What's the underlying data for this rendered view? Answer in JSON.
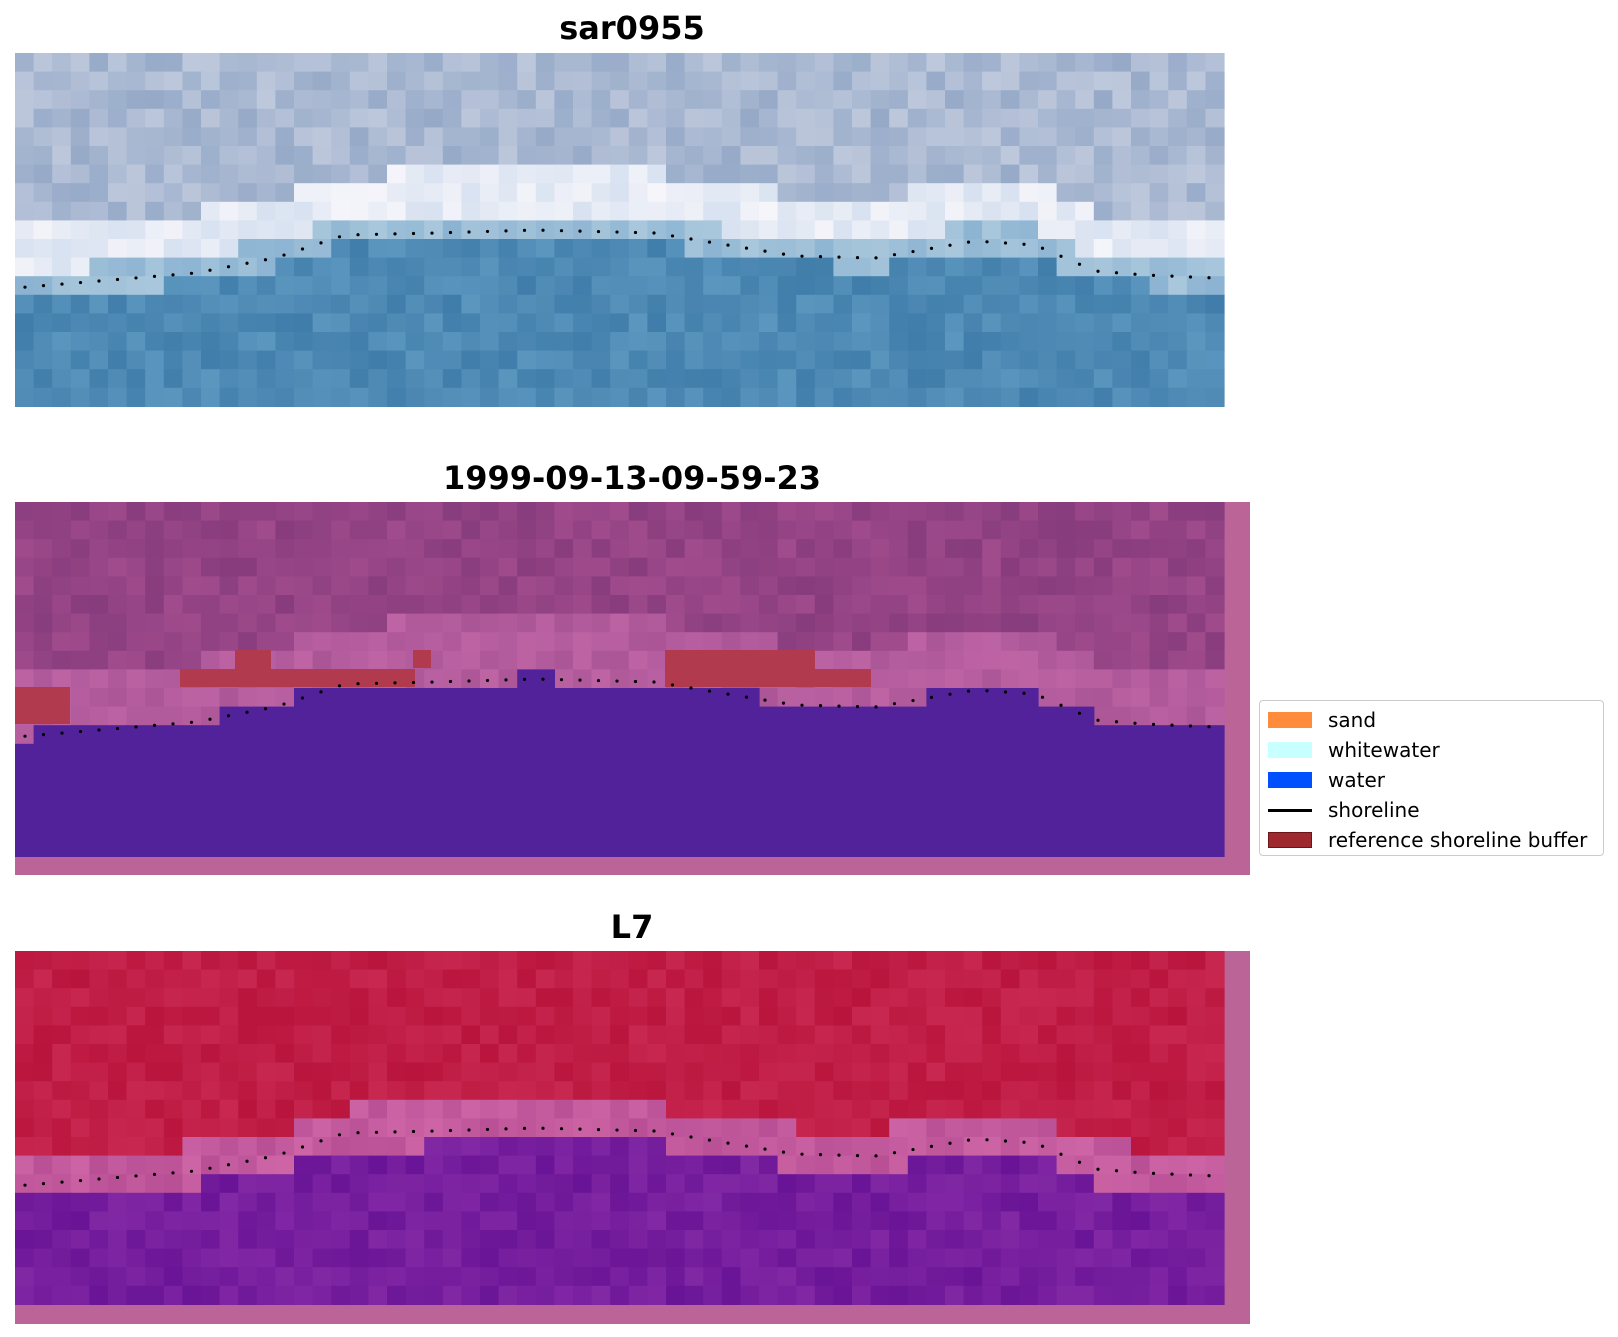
{
  "panels": [
    {
      "title": "sar0955",
      "kind": "rgb"
    },
    {
      "title": "1999-09-13-09-59-23",
      "kind": "classified"
    },
    {
      "title": "L7",
      "kind": "falsecolor"
    }
  ],
  "legend": {
    "items": [
      {
        "label": "sand",
        "color": "#ff8c3c",
        "type": "patch"
      },
      {
        "label": "whitewater",
        "color": "#c8ffff",
        "type": "patch"
      },
      {
        "label": "water",
        "color": "#0050ff",
        "type": "patch"
      },
      {
        "label": "shoreline",
        "color": "#000000",
        "type": "line"
      },
      {
        "label": "reference shoreline buffer",
        "color": "#9e2a2f",
        "type": "patch"
      }
    ]
  }
}
